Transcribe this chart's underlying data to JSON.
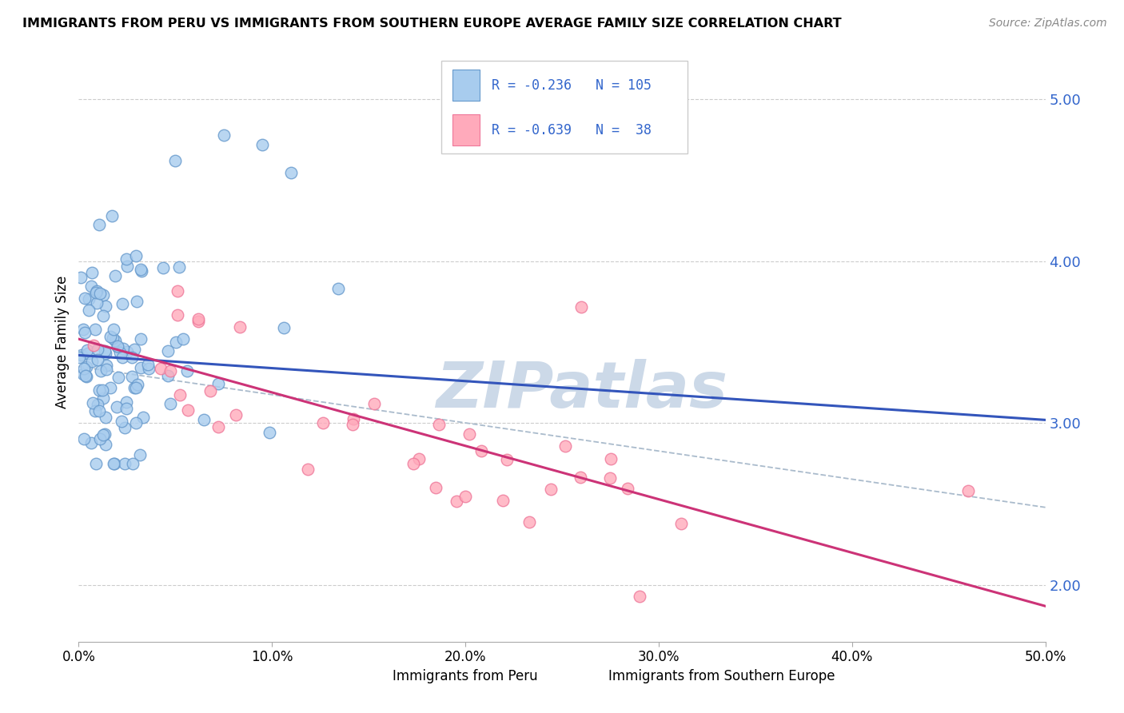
{
  "title": "IMMIGRANTS FROM PERU VS IMMIGRANTS FROM SOUTHERN EUROPE AVERAGE FAMILY SIZE CORRELATION CHART",
  "source": "Source: ZipAtlas.com",
  "ylabel": "Average Family Size",
  "xlabel_ticks": [
    "0.0%",
    "10.0%",
    "20.0%",
    "30.0%",
    "40.0%",
    "50.0%"
  ],
  "xlabel_vals": [
    0.0,
    10.0,
    20.0,
    30.0,
    40.0,
    50.0
  ],
  "ylabel_ticks": [
    2.0,
    3.0,
    4.0,
    5.0
  ],
  "xlim": [
    0.0,
    50.0
  ],
  "ylim": [
    1.65,
    5.35
  ],
  "blue_color": "#a8ccee",
  "blue_edge": "#6699cc",
  "pink_color": "#ffaabb",
  "pink_edge": "#ee7799",
  "trend_blue": "#3355bb",
  "trend_pink": "#cc3377",
  "dash_color": "#aabbcc",
  "watermark": "ZIPatlas",
  "watermark_color": "#ccd9e8",
  "legend_text_color": "#3366cc",
  "legend_r1": "R = -0.236",
  "legend_n1": "N = 105",
  "legend_r2": "R = -0.639",
  "legend_n2": "N =  38",
  "footer_blue": "Immigrants from Peru",
  "footer_pink": "Immigrants from Southern Europe",
  "blue_n": 105,
  "pink_n": 38,
  "blue_trend_start": 3.42,
  "blue_trend_end": 3.02,
  "pink_trend_start": 3.52,
  "pink_trend_end": 1.87,
  "dash_trend_start": 3.35,
  "dash_trend_end": 2.48
}
